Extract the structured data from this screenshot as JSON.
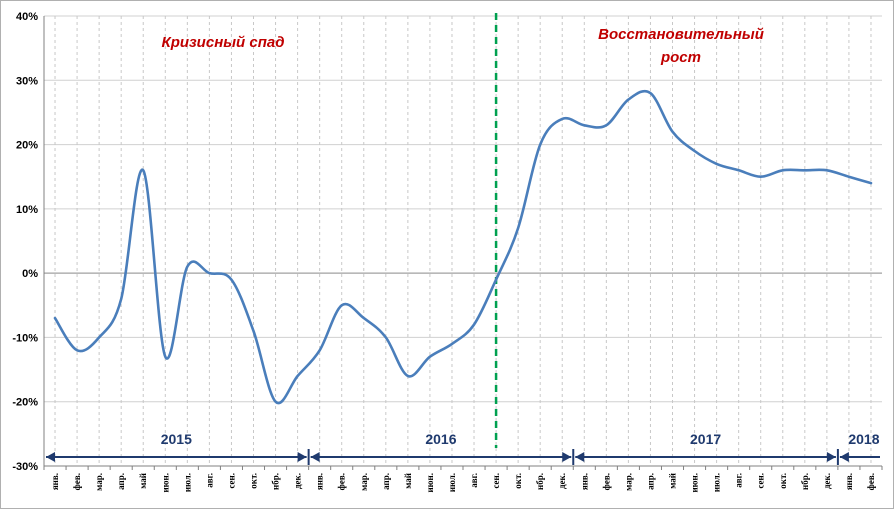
{
  "chart_data": {
    "type": "line",
    "y_axis": {
      "min": -30,
      "max": 40,
      "step": 10,
      "tick_labels": [
        "-30%",
        "-20%",
        "-10%",
        "0%",
        "10%",
        "20%",
        "30%",
        "40%"
      ]
    },
    "x_tick_labels": [
      "янв.",
      "фев.",
      "мар.",
      "апр.",
      "май",
      "июн.",
      "июл.",
      "авг.",
      "сен.",
      "окт.",
      "нбр.",
      "дек.",
      "янв.",
      "фев.",
      "мар.",
      "апр.",
      "май",
      "июн.",
      "июл.",
      "авг.",
      "сен.",
      "окт.",
      "нбр.",
      "дек.",
      "янв.",
      "фев.",
      "мар.",
      "апр.",
      "май",
      "июн.",
      "июл.",
      "авг.",
      "сен.",
      "окт.",
      "нбр.",
      "дек.",
      "янв.",
      "фев."
    ],
    "series": [
      {
        "color": "#4a7ebb",
        "values": [
          -7,
          -12,
          -10,
          -4,
          16,
          -13,
          1,
          0,
          -1,
          -9,
          -20,
          -16,
          -12,
          -5,
          -7,
          -10,
          -16,
          -13,
          -11,
          -8,
          -1,
          7,
          20,
          24,
          23,
          23,
          27,
          28,
          22,
          19,
          17,
          16,
          15,
          16,
          16,
          16,
          15,
          14
        ]
      }
    ],
    "years": [
      {
        "label": "2015",
        "start_index": 0,
        "end_index": 11
      },
      {
        "label": "2016",
        "start_index": 12,
        "end_index": 23
      },
      {
        "label": "2017",
        "start_index": 24,
        "end_index": 35
      },
      {
        "label": "2018",
        "start_index": 36,
        "end_index": 37
      }
    ],
    "divider_index": 20,
    "annotations": [
      "Кризисный спад",
      "Восстановительный",
      "рост"
    ],
    "grid": true,
    "colors": {
      "line": "#4a7ebb",
      "divider": "#00a050",
      "year_arrow": "#1f3a6e",
      "annotation": "#c00000"
    }
  }
}
